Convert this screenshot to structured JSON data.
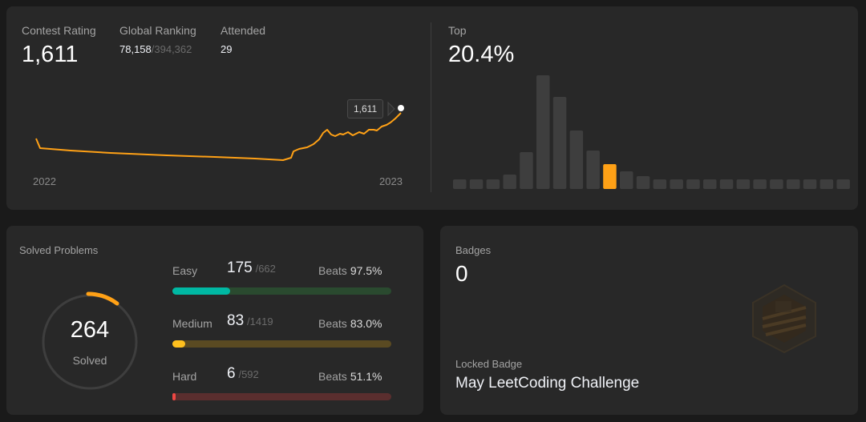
{
  "contest": {
    "rating_label": "Contest Rating",
    "rating_value": "1,611",
    "ranking_label": "Global Ranking",
    "ranking_value": "78,158",
    "ranking_total": "/394,362",
    "attended_label": "Attended",
    "attended_value": "29",
    "tooltip": "1,611",
    "year_start": "2022",
    "year_end": "2023",
    "line_color": "#ffa116"
  },
  "top": {
    "label": "Top",
    "value": "20.4%",
    "highlight_color": "#ffa116",
    "bar_color": "#3e3e3e"
  },
  "solved": {
    "title": "Solved Problems",
    "total": "264",
    "total_label": "Solved",
    "difficulties": [
      {
        "name": "Easy",
        "solved": "175",
        "total": "/662",
        "beats_label": "Beats",
        "beats": "97.5%",
        "fraction": 0.264,
        "color": "#00b8a3",
        "track": "#2a4a2f"
      },
      {
        "name": "Medium",
        "solved": "83",
        "total": "/1419",
        "beats_label": "Beats",
        "beats": "83.0%",
        "fraction": 0.058,
        "color": "#ffc01e",
        "track": "#5a4a22"
      },
      {
        "name": "Hard",
        "solved": "6",
        "total": "/592",
        "beats_label": "Beats",
        "beats": "51.1%",
        "fraction": 0.01,
        "color": "#ef4743",
        "track": "#5a2e2e"
      }
    ]
  },
  "badges": {
    "label": "Badges",
    "count": "0",
    "locked_label": "Locked Badge",
    "locked_name": "May LeetCoding Challenge",
    "icon": "hexagon-badge-icon"
  }
}
